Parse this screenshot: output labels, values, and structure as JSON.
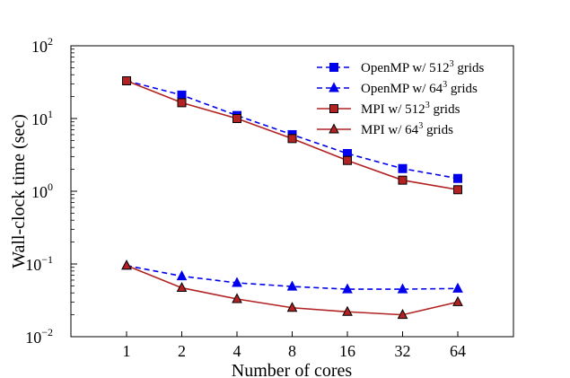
{
  "chart_data": {
    "type": "line",
    "title": "",
    "xlabel": "Number of cores",
    "ylabel": "Wall-clock time (sec)",
    "x": [
      1,
      2,
      4,
      8,
      16,
      32,
      64
    ],
    "x_tick_labels": [
      "1",
      "2",
      "4",
      "8",
      "16",
      "32",
      "64"
    ],
    "x_scale": "log2",
    "y_scale": "log10",
    "ylim": [
      0.01,
      100
    ],
    "y_ticks": [
      {
        "value": 0.01,
        "base": "10",
        "exp": "−2"
      },
      {
        "value": 0.1,
        "base": "10",
        "exp": "−1"
      },
      {
        "value": 1,
        "base": "10",
        "exp": "0"
      },
      {
        "value": 10,
        "base": "10",
        "exp": "1"
      },
      {
        "value": 100,
        "base": "10",
        "exp": "2"
      }
    ],
    "grid": false,
    "legend_position": "top-right",
    "series": [
      {
        "name": "OpenMP w/ 512³ grids",
        "legend_pre": "OpenMP w/ 512",
        "legend_sup": "3",
        "legend_post": " grids",
        "values": [
          33,
          21,
          11,
          6.0,
          3.3,
          2.05,
          1.5
        ],
        "color": "#0000ee",
        "marker": "square",
        "dashed": true
      },
      {
        "name": "OpenMP w/ 64³ grids",
        "legend_pre": "OpenMP w/ 64",
        "legend_sup": "3",
        "legend_post": " grids",
        "values": [
          0.095,
          0.068,
          0.055,
          0.049,
          0.045,
          0.045,
          0.046
        ],
        "color": "#0000ee",
        "marker": "triangle",
        "dashed": true
      },
      {
        "name": "MPI w/ 512³ grids",
        "legend_pre": "MPI w/ 512",
        "legend_sup": "3",
        "legend_post": " grids",
        "values": [
          33,
          16.5,
          10,
          5.3,
          2.65,
          1.42,
          1.05
        ],
        "color": "#b22222",
        "marker": "square",
        "dashed": false
      },
      {
        "name": "MPI w/ 64³ grids",
        "legend_pre": "MPI w/ 64",
        "legend_sup": "3",
        "legend_post": " grids",
        "values": [
          0.095,
          0.047,
          0.033,
          0.025,
          0.022,
          0.02,
          0.03
        ],
        "color": "#b22222",
        "marker": "triangle",
        "dashed": false
      }
    ]
  }
}
